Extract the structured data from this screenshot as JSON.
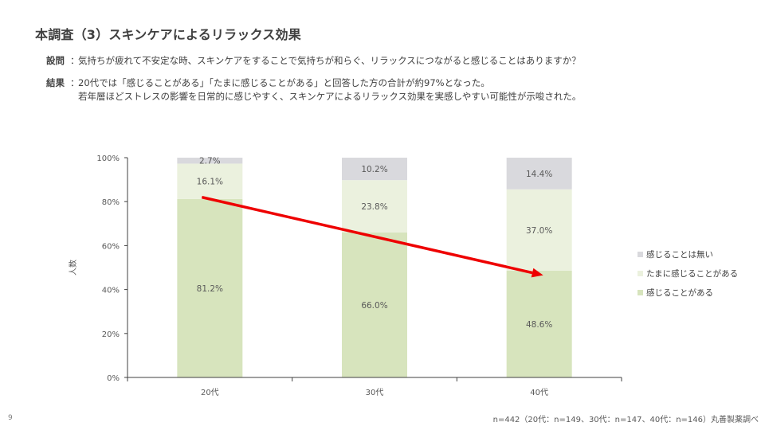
{
  "title": "本調査（3）スキンケアによるリラックス効果",
  "question": {
    "label": "設問",
    "text": "気持ちが疲れて不安定な時、スキンケアをすることで気持ちが和らぐ、リラックスにつながると感じることはありますか？"
  },
  "result": {
    "label": "結果",
    "line1": "20代では「感じることがある」「たまに感じることがある」と回答した方の合計が約97%となった。",
    "line2": "若年層ほどストレスの影響を日常的に感じやすく、スキンケアによるリラックス効果を実感しやすい可能性が示唆された。"
  },
  "colon": "：",
  "page_number": "9",
  "footnote": "n=442（20代：n=149、30代：n=147、40代：n=146）丸善製薬調べ",
  "colors": {
    "feel": "#d7e4bd",
    "sometimes": "#ebf1de",
    "never": "#d9d9dd",
    "arrow": "#ee0000",
    "axis": "#404040"
  },
  "chart_data": {
    "type": "bar",
    "stacked": true,
    "categories": [
      "20代",
      "30代",
      "40代"
    ],
    "series": [
      {
        "name": "感じることがある",
        "values": [
          81.2,
          66.0,
          48.6
        ],
        "labels": [
          "81.2%",
          "66.0%",
          "48.6%"
        ]
      },
      {
        "name": "たまに感じることがある",
        "values": [
          16.1,
          23.8,
          37.0
        ],
        "labels": [
          "16.1%",
          "23.8%",
          "37.0%"
        ]
      },
      {
        "name": "感じることは無い",
        "values": [
          2.7,
          10.2,
          14.4
        ],
        "labels": [
          "2.7%",
          "10.2%",
          "14.4%"
        ]
      }
    ],
    "ylabel": "人数",
    "ylim": [
      0,
      100
    ],
    "yticks": [
      "0%",
      "20%",
      "40%",
      "60%",
      "80%",
      "100%"
    ],
    "legend_position": "right",
    "legend_order": [
      "感じることは無い",
      "たまに感じることがある",
      "感じることがある"
    ],
    "annotation": {
      "type": "arrow",
      "from_category": "20代",
      "from_value": 82,
      "to_category": "40代",
      "to_value": 46.5
    },
    "grid": false
  }
}
